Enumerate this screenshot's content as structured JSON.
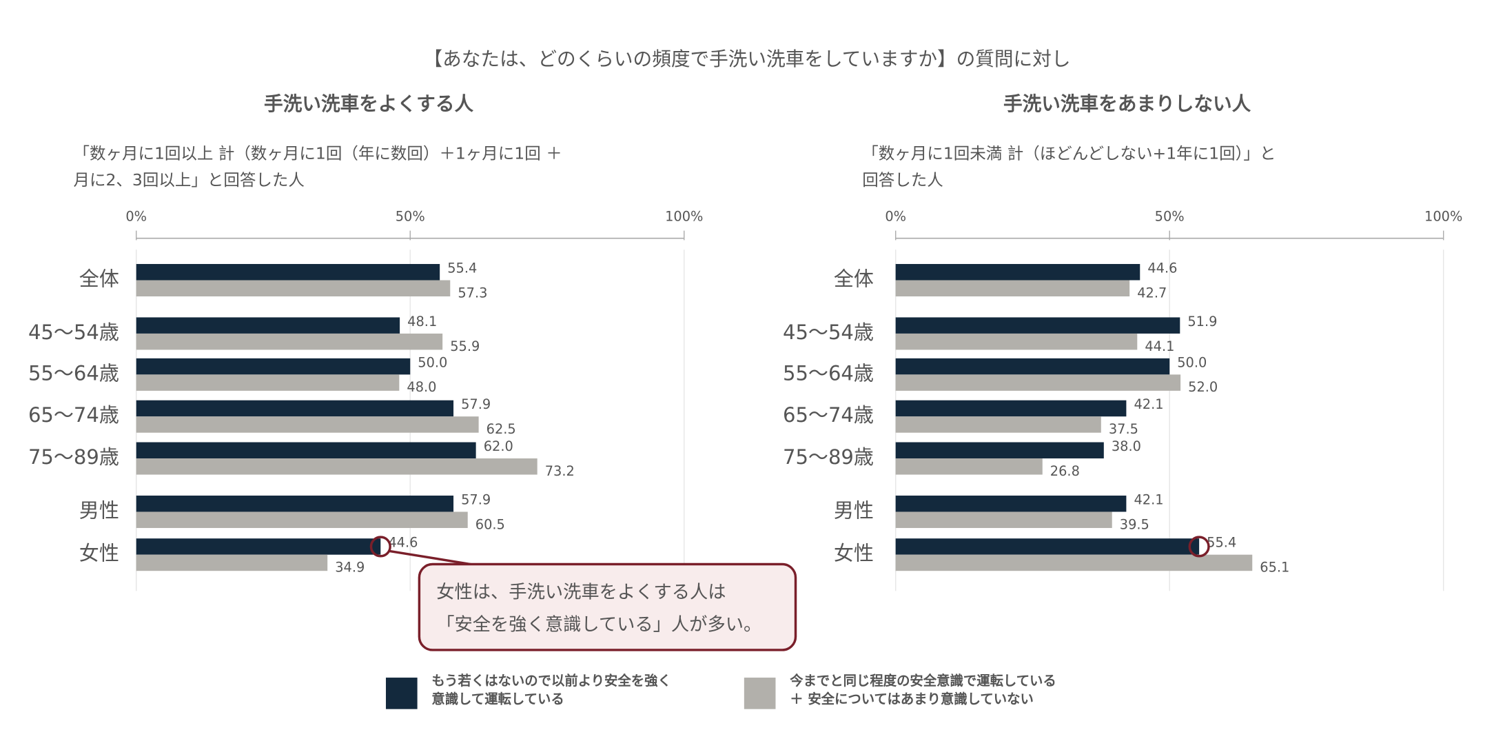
{
  "title": "【あなたは、どのくらいの頻度で手洗い洗車をしていますか】の質問に対し",
  "chart_data": [
    {
      "type": "bar",
      "orientation": "horizontal",
      "title": "手洗い洗車をよくする人",
      "subtitle": [
        "「数ヶ月に1回以上 計（数ヶ月に1回（年に数回）＋1ヶ月に1回 ＋",
        "月に2、3回以上」と回答した人"
      ],
      "categories": [
        "全体",
        "45～54歳",
        "55～64歳",
        "65～74歳",
        "75～89歳",
        "男性",
        "女性"
      ],
      "xlim": [
        0,
        100
      ],
      "xticks": [
        {
          "value": 0,
          "label": "0%"
        },
        {
          "value": 50,
          "label": "50%"
        },
        {
          "value": 100,
          "label": "100%"
        }
      ],
      "grid": true,
      "series": [
        {
          "name": "もう若くはないので以前より安全を強く\n意識して運転している",
          "color": "#13293d",
          "values": [
            55.4,
            48.1,
            50.0,
            57.9,
            62.0,
            57.9,
            44.6
          ],
          "value_labels": [
            "55.4",
            "48.1",
            "50.0",
            "57.9",
            "62.0",
            "57.9",
            "44.6"
          ]
        },
        {
          "name": "今までと同じ程度の安全意識で運転している\n＋ 安全についてはあまり意識していない",
          "color": "#b2b0ab",
          "values": [
            57.3,
            55.9,
            48.0,
            62.5,
            73.2,
            60.5,
            34.9
          ],
          "value_labels": [
            "57.3",
            "55.9",
            "48.0",
            "62.5",
            "73.2",
            "60.5",
            "34.9"
          ]
        }
      ],
      "highlight": {
        "series": 0,
        "index": 6
      },
      "annotation": [
        "女性は、手洗い洗車をよくする人は",
        "「安全を強く意識している」人が多い。"
      ]
    },
    {
      "type": "bar",
      "orientation": "horizontal",
      "title": "手洗い洗車をあまりしない人",
      "subtitle": [
        "「数ヶ月に1回未満 計（ほどんどしない+1年に1回）」と",
        "回答した人"
      ],
      "categories": [
        "全体",
        "45～54歳",
        "55～64歳",
        "65～74歳",
        "75～89歳",
        "男性",
        "女性"
      ],
      "xlim": [
        0,
        100
      ],
      "xticks": [
        {
          "value": 0,
          "label": "0%"
        },
        {
          "value": 50,
          "label": "50%"
        },
        {
          "value": 100,
          "label": "100%"
        }
      ],
      "grid": true,
      "series": [
        {
          "color": "#13293d",
          "values": [
            44.6,
            51.9,
            50.0,
            42.1,
            38.0,
            42.1,
            55.4
          ],
          "value_labels": [
            "44.6",
            "51.9",
            "50.0",
            "42.1",
            "38.0",
            "42.1",
            "55.4"
          ]
        },
        {
          "color": "#b2b0ab",
          "values": [
            42.7,
            44.1,
            52.0,
            37.5,
            26.8,
            39.5,
            65.1
          ],
          "value_labels": [
            "42.7",
            "44.1",
            "52.0",
            "37.5",
            "26.8",
            "39.5",
            "65.1"
          ]
        }
      ],
      "highlight": {
        "series": 0,
        "index": 6
      }
    }
  ]
}
